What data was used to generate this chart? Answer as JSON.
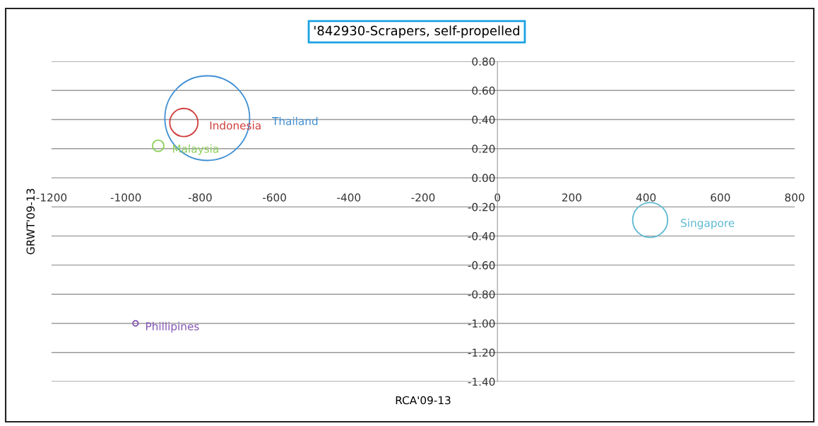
{
  "chart_data": {
    "type": "bubble",
    "title": "'842930-Scrapers, self-propelled",
    "xlabel": "RCA'09-13",
    "ylabel": "GRWT'09-13",
    "xlim": [
      -1200,
      800
    ],
    "xticks": [
      -1200,
      -1000,
      -800,
      -600,
      -400,
      -200,
      0,
      200,
      400,
      600,
      800
    ],
    "ylim": [
      -1.4,
      0.8
    ],
    "yticks": [
      {
        "value": -1.4,
        "label": "-1.40"
      },
      {
        "value": -1.2,
        "label": "-1.20"
      },
      {
        "value": -1.0,
        "label": "-1.00"
      },
      {
        "value": -0.8,
        "label": "-0.80"
      },
      {
        "value": -0.6,
        "label": "-0.60"
      },
      {
        "value": -0.4,
        "label": "-0.40"
      },
      {
        "value": -0.2,
        "label": "-0.20"
      },
      {
        "value": 0,
        "label": "0.00"
      },
      {
        "value": 0.2,
        "label": "0.20"
      },
      {
        "value": 0.4,
        "label": "0.40"
      },
      {
        "value": 0.6,
        "label": "0.60"
      },
      {
        "value": 0.8,
        "label": "0.80"
      }
    ],
    "grid": "y",
    "legend": false,
    "series": [
      {
        "name": "Thailand",
        "color": "#3f8fd2",
        "x": [
          -781
        ],
        "values": [
          0.41
        ],
        "sizes": [
          1
        ]
      },
      {
        "name": "Indonesia",
        "color": "#d03c3c",
        "x": [
          -844
        ],
        "values": [
          0.38
        ],
        "sizes": [
          0.11
        ]
      },
      {
        "name": "Malaysia",
        "color": "#8ccf5a",
        "x": [
          -913
        ],
        "values": [
          0.22
        ],
        "sizes": [
          0.018
        ]
      },
      {
        "name": "Phillipines",
        "color": "#8455b5",
        "x": [
          -974
        ],
        "values": [
          -1.0
        ],
        "sizes": [
          0.004
        ]
      },
      {
        "name": "Singapore",
        "color": "#5db8d2",
        "x": [
          411
        ],
        "values": [
          -0.29
        ],
        "sizes": [
          0.17
        ]
      }
    ]
  }
}
